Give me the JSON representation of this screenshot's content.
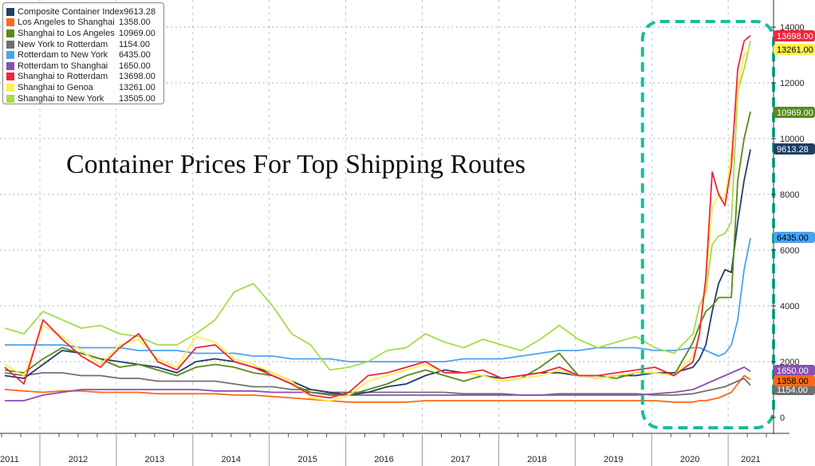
{
  "chart_data": {
    "type": "line",
    "title": "Container Prices For Top Shipping Routes",
    "xlabel": "",
    "ylabel": "",
    "ylim": [
      0,
      14000
    ],
    "yticks": [
      0,
      2000,
      4000,
      6000,
      8000,
      10000,
      12000,
      14000
    ],
    "xtick_labels": [
      "2011",
      "2012",
      "2013",
      "2014",
      "2015",
      "2016",
      "2017",
      "2018",
      "2019",
      "2020",
      "2021"
    ],
    "grid": true,
    "legend_placement": "top-left",
    "y_axis_side": "right",
    "highlight_box": {
      "from": "2020-01",
      "to": "2021-04",
      "color": "#1bbc9b",
      "style": "dashed"
    },
    "x": [
      "2011-07",
      "2011-10",
      "2012-01",
      "2012-04",
      "2012-07",
      "2012-10",
      "2013-01",
      "2013-04",
      "2013-07",
      "2013-10",
      "2014-01",
      "2014-04",
      "2014-07",
      "2014-10",
      "2015-01",
      "2015-04",
      "2015-07",
      "2015-10",
      "2016-01",
      "2016-04",
      "2016-07",
      "2016-10",
      "2017-01",
      "2017-04",
      "2017-07",
      "2017-10",
      "2018-01",
      "2018-04",
      "2018-07",
      "2018-10",
      "2019-01",
      "2019-04",
      "2019-07",
      "2019-10",
      "2020-01",
      "2020-04",
      "2020-07",
      "2020-08",
      "2020-09",
      "2020-10",
      "2020-11",
      "2020-12",
      "2021-01",
      "2021-02",
      "2021-03",
      "2021-04"
    ],
    "series": [
      {
        "name": "Composite Container Index",
        "last": "9613.28",
        "color": "#1f3f66",
        "text_color": "#ffffff",
        "values": [
          1500,
          1400,
          1900,
          2400,
          2300,
          2100,
          2000,
          1900,
          1800,
          1600,
          2000,
          2100,
          2000,
          1800,
          1600,
          1300,
          1000,
          900,
          800,
          900,
          1100,
          1200,
          1500,
          1700,
          1600,
          1500,
          1400,
          1500,
          1600,
          1600,
          1500,
          1400,
          1500,
          1500,
          1600,
          1600,
          1800,
          2100,
          2600,
          3800,
          4800,
          5300,
          5200,
          7000,
          8500,
          9613.28
        ]
      },
      {
        "name": "Los Angeles to Shanghai",
        "last": "1358.00",
        "color": "#ff6a13",
        "text_color": "#000000",
        "values": [
          1000,
          950,
          900,
          950,
          950,
          900,
          900,
          900,
          850,
          850,
          850,
          850,
          800,
          800,
          750,
          700,
          650,
          600,
          550,
          550,
          550,
          550,
          600,
          600,
          600,
          600,
          600,
          600,
          600,
          600,
          600,
          600,
          600,
          600,
          600,
          550,
          550,
          600,
          600,
          650,
          700,
          800,
          900,
          1200,
          1500,
          1358
        ]
      },
      {
        "name": "Shanghai to Los Angeles",
        "last": "10969.00",
        "color": "#5a8a1a",
        "text_color": "#ffffff",
        "values": [
          1700,
          1600,
          2100,
          2500,
          2300,
          2100,
          1800,
          1900,
          1700,
          1500,
          1800,
          1900,
          1800,
          1600,
          1500,
          1200,
          900,
          800,
          800,
          1000,
          1200,
          1500,
          1700,
          1500,
          1300,
          1500,
          1300,
          1400,
          1800,
          2300,
          1500,
          1500,
          1400,
          1600,
          1600,
          1500,
          2700,
          3300,
          3800,
          4000,
          4300,
          4300,
          4300,
          8500,
          10000,
          10969
        ]
      },
      {
        "name": "New York to Rotterdam",
        "last": "1154.00",
        "color": "#707070",
        "text_color": "#ffffff",
        "values": [
          1600,
          1500,
          1600,
          1600,
          1500,
          1500,
          1400,
          1400,
          1300,
          1300,
          1300,
          1300,
          1200,
          1100,
          1100,
          1000,
          1000,
          900,
          900,
          900,
          900,
          900,
          900,
          900,
          850,
          850,
          850,
          800,
          800,
          850,
          850,
          850,
          850,
          850,
          800,
          800,
          850,
          900,
          950,
          1000,
          1050,
          1100,
          1200,
          1300,
          1400,
          1154
        ]
      },
      {
        "name": "Rotterdam to New York",
        "last": "6435.00",
        "color": "#4aa3f0",
        "text_color": "#000000",
        "values": [
          2600,
          2600,
          2600,
          2600,
          2500,
          2500,
          2500,
          2400,
          2400,
          2400,
          2300,
          2300,
          2300,
          2200,
          2200,
          2100,
          2100,
          2100,
          2000,
          2000,
          2000,
          2000,
          2000,
          2000,
          2100,
          2100,
          2100,
          2200,
          2300,
          2400,
          2400,
          2500,
          2500,
          2500,
          2400,
          2400,
          2500,
          2500,
          2400,
          2300,
          2200,
          2300,
          2600,
          3500,
          5300,
          6435
        ]
      },
      {
        "name": "Rotterdam to Shanghai",
        "last": "1650.00",
        "color": "#8a4fb0",
        "text_color": "#ffffff",
        "values": [
          600,
          600,
          800,
          900,
          1000,
          1000,
          1000,
          1000,
          1000,
          1000,
          1000,
          950,
          950,
          950,
          900,
          900,
          900,
          850,
          800,
          800,
          800,
          800,
          800,
          800,
          800,
          800,
          800,
          800,
          800,
          800,
          800,
          800,
          800,
          800,
          850,
          900,
          1000,
          1100,
          1200,
          1300,
          1400,
          1500,
          1600,
          1700,
          1800,
          1650
        ]
      },
      {
        "name": "Shanghai to Rotterdam",
        "last": "13698.00",
        "color": "#f0243c",
        "text_color": "#ffffff",
        "values": [
          1800,
          1200,
          3500,
          2800,
          2200,
          1800,
          2500,
          3000,
          2000,
          1700,
          2500,
          2600,
          2000,
          1800,
          1500,
          1200,
          800,
          700,
          900,
          1500,
          1600,
          1800,
          2000,
          1600,
          1600,
          1700,
          1400,
          1500,
          1600,
          1800,
          1500,
          1500,
          1600,
          1700,
          1800,
          1500,
          2000,
          3000,
          5000,
          8800,
          8000,
          7600,
          9000,
          12500,
          13500,
          13698
        ]
      },
      {
        "name": "Shanghai to Genoa",
        "last": "13261.00",
        "color": "#fff04a",
        "text_color": "#000000",
        "values": [
          1900,
          1500,
          3300,
          2900,
          2400,
          1900,
          2600,
          2800,
          2100,
          1800,
          2900,
          2700,
          2100,
          1900,
          1600,
          1300,
          700,
          600,
          800,
          1300,
          1500,
          1700,
          1900,
          1600,
          1600,
          1500,
          1300,
          1400,
          1500,
          1700,
          1500,
          1400,
          1500,
          1600,
          1600,
          1500,
          2200,
          3000,
          4800,
          7500,
          8000,
          7800,
          9500,
          11800,
          13000,
          13261
        ]
      },
      {
        "name": "Shanghai to New York",
        "last": "13505.00",
        "color": "#a6dc4a",
        "text_color": "#000000",
        "values": [
          3200,
          3000,
          3800,
          3500,
          3200,
          3300,
          3000,
          2900,
          2600,
          2600,
          3000,
          3500,
          4500,
          4800,
          4000,
          3000,
          2600,
          1700,
          1800,
          2000,
          2400,
          2500,
          3000,
          2700,
          2500,
          2800,
          2600,
          2400,
          2800,
          3300,
          2800,
          2500,
          2700,
          2900,
          2500,
          2300,
          3000,
          4000,
          4500,
          6200,
          6500,
          6600,
          7000,
          11700,
          12500,
          13505
        ]
      }
    ]
  }
}
